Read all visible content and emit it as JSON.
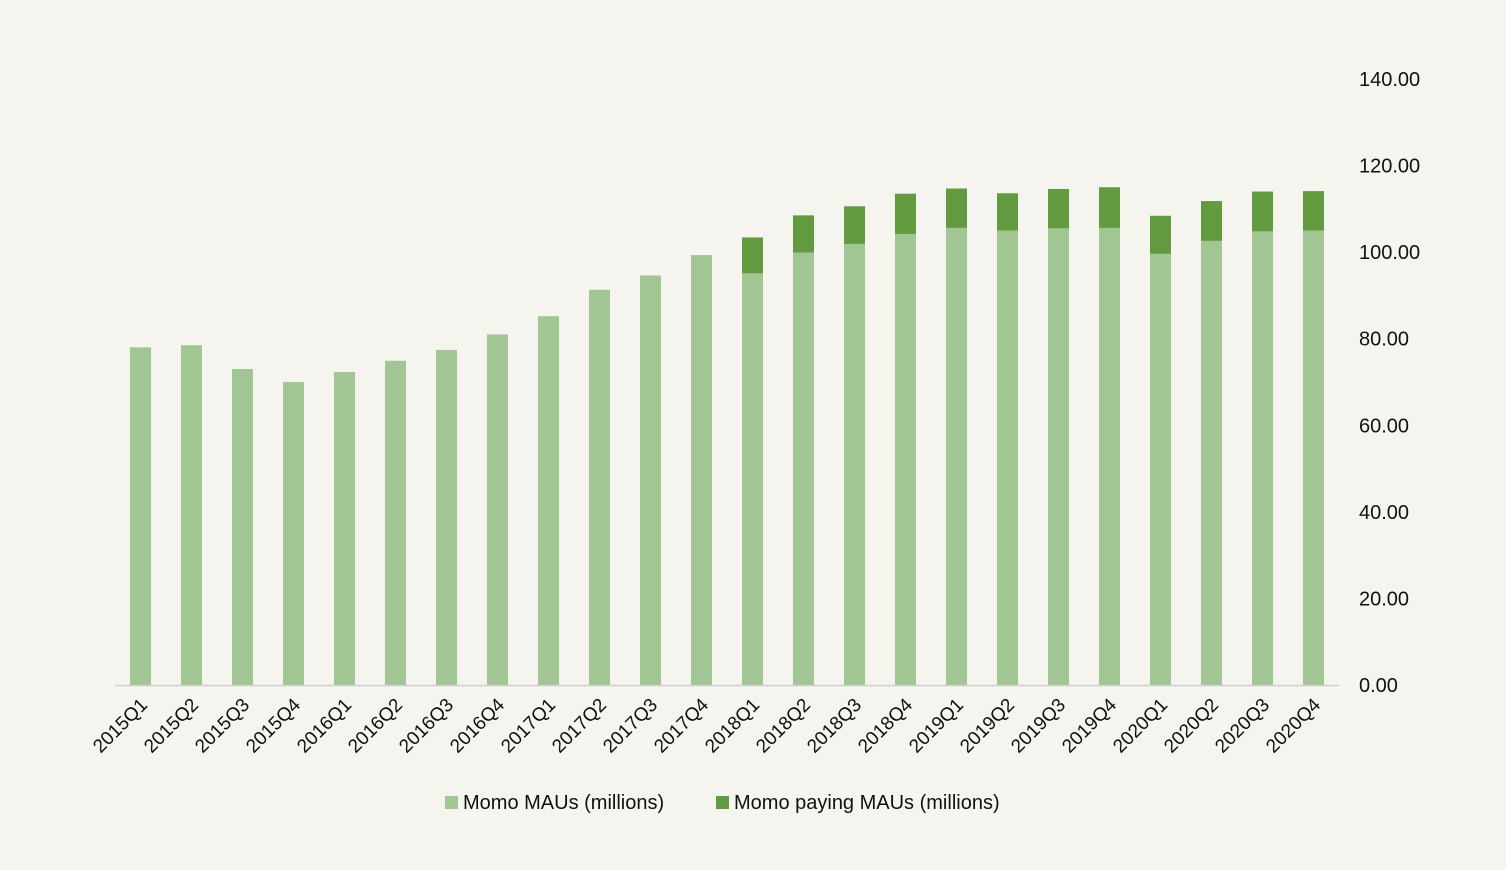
{
  "colors": {
    "background": "#f5f4ef",
    "series_light": "#a2c594",
    "series_dark": "#629b3f",
    "axis": "#cfcfcf",
    "text": "#111111"
  },
  "chart_data": {
    "type": "bar",
    "stacked": true,
    "title": "",
    "xlabel": "",
    "ylabel": "",
    "ylim": [
      0,
      140
    ],
    "yaxis_position": "right",
    "ytick_values": [
      0,
      20,
      40,
      60,
      80,
      100,
      120,
      140
    ],
    "ytick_labels": [
      "0.00",
      "20.00",
      "40.00",
      "60.00",
      "80.00",
      "100.00",
      "120.00",
      "140.00"
    ],
    "grid": false,
    "legend_position": "bottom",
    "categories": [
      "2015Q1",
      "2015Q2",
      "2015Q3",
      "2015Q4",
      "2016Q1",
      "2016Q2",
      "2016Q3",
      "2016Q4",
      "2017Q1",
      "2017Q2",
      "2017Q3",
      "2017Q4",
      "2018Q1",
      "2018Q2",
      "2018Q3",
      "2018Q4",
      "2019Q1",
      "2019Q2",
      "2019Q3",
      "2019Q4",
      "2020Q1",
      "2020Q2",
      "2020Q3",
      "2020Q4"
    ],
    "series": [
      {
        "name": "Momo MAUs (millions)",
        "color": "#a2c594",
        "values": [
          78.0,
          78.5,
          73.0,
          70.0,
          72.3,
          74.9,
          77.4,
          81.0,
          85.2,
          91.3,
          94.6,
          99.3,
          95.1,
          99.9,
          101.9,
          104.2,
          105.6,
          105.0,
          105.5,
          105.6,
          99.6,
          102.6,
          104.8,
          105.0
        ]
      },
      {
        "name": "Momo paying MAUs (millions)",
        "color": "#629b3f",
        "values": [
          0,
          0,
          0,
          0,
          0,
          0,
          0,
          0,
          0,
          0,
          0,
          0,
          8.3,
          8.6,
          8.7,
          9.3,
          9.1,
          8.6,
          9.1,
          9.4,
          8.8,
          9.2,
          9.2,
          9.1
        ]
      }
    ]
  }
}
